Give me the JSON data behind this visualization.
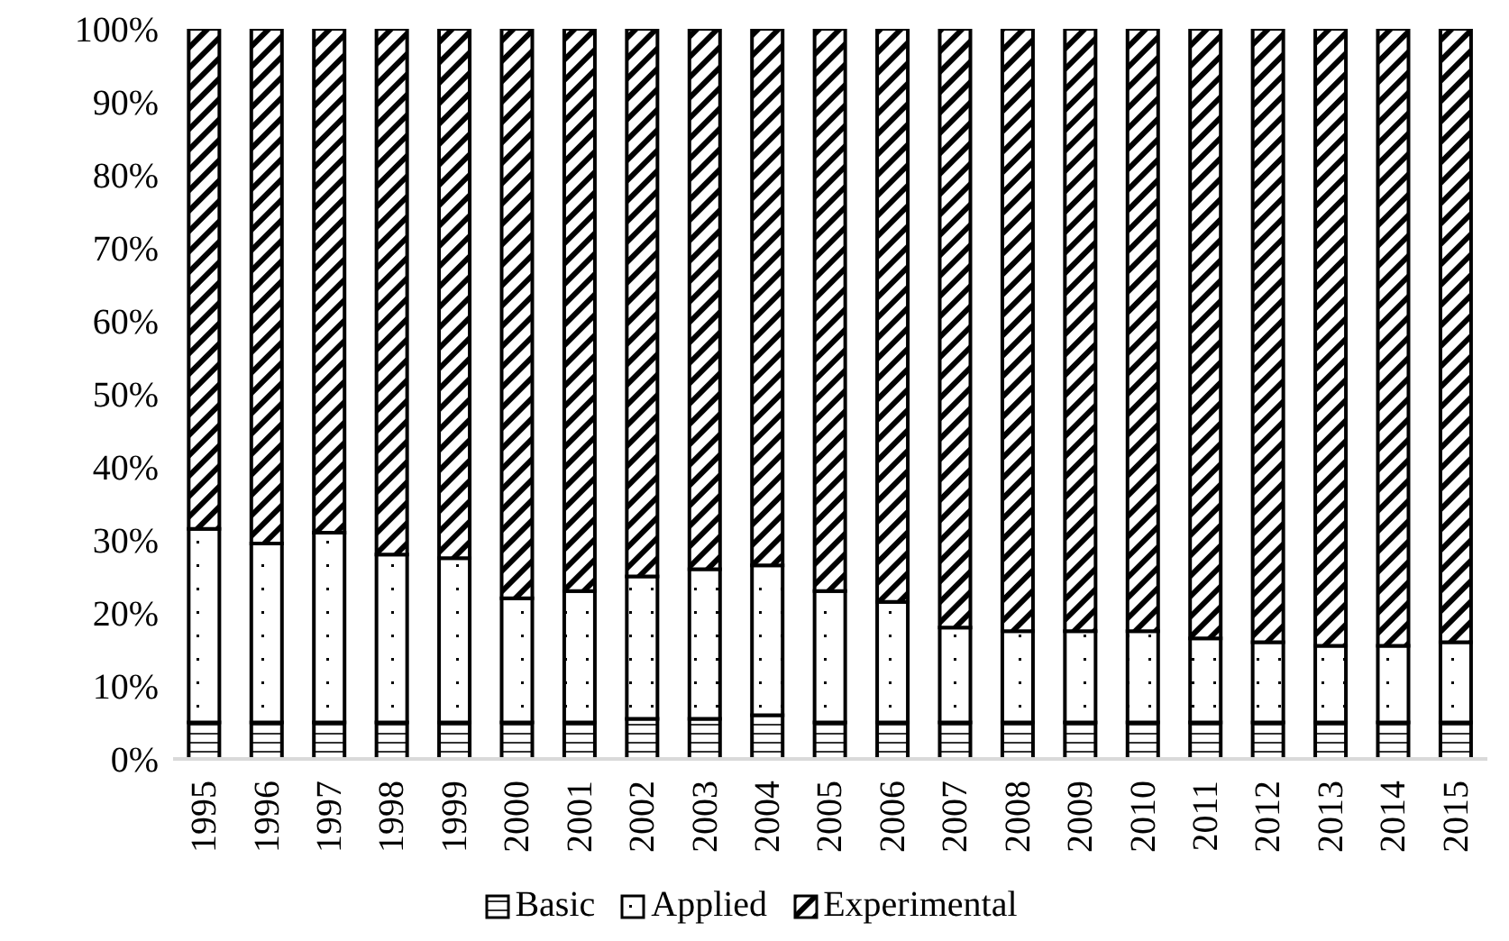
{
  "chart_data": {
    "type": "bar",
    "stacked": true,
    "categories": [
      "1995",
      "1996",
      "1997",
      "1998",
      "1999",
      "2000",
      "2001",
      "2002",
      "2003",
      "2004",
      "2005",
      "2006",
      "2007",
      "2008",
      "2009",
      "2010",
      "2011",
      "2012",
      "2013",
      "2014",
      "2015"
    ],
    "series": [
      {
        "name": "Basic",
        "color": "#000000",
        "values": [
          5,
          5,
          5,
          5,
          5,
          5,
          5,
          5.5,
          5.5,
          6,
          5,
          5,
          5,
          5,
          5,
          5,
          5,
          5,
          5,
          5,
          5
        ]
      },
      {
        "name": "Applied",
        "color": "#000000",
        "values": [
          26.5,
          24.5,
          26,
          23,
          22.5,
          17,
          18,
          19.5,
          20.5,
          20.5,
          18,
          16.5,
          13,
          12.5,
          12.5,
          12.5,
          11.5,
          11,
          10.5,
          10.5,
          11
        ]
      },
      {
        "name": "Experimental",
        "color": "#000000",
        "values": [
          68.5,
          70.5,
          69,
          72,
          72.5,
          78,
          77,
          75,
          74,
          73.5,
          77,
          78.5,
          82,
          82.5,
          82.5,
          82.5,
          83.5,
          84,
          84.5,
          84.5,
          84
        ]
      }
    ],
    "ylim": [
      0,
      100
    ],
    "yticks": [
      {
        "value": 0,
        "label": "0%"
      },
      {
        "value": 10,
        "label": "10%"
      },
      {
        "value": 20,
        "label": "20%"
      },
      {
        "value": 30,
        "label": "30%"
      },
      {
        "value": 40,
        "label": "40%"
      },
      {
        "value": 50,
        "label": "50%"
      },
      {
        "value": 60,
        "label": "60%"
      },
      {
        "value": 70,
        "label": "70%"
      },
      {
        "value": 80,
        "label": "80%"
      },
      {
        "value": 90,
        "label": "90%"
      },
      {
        "value": 100,
        "label": "100%"
      }
    ],
    "legend": "bottom"
  }
}
